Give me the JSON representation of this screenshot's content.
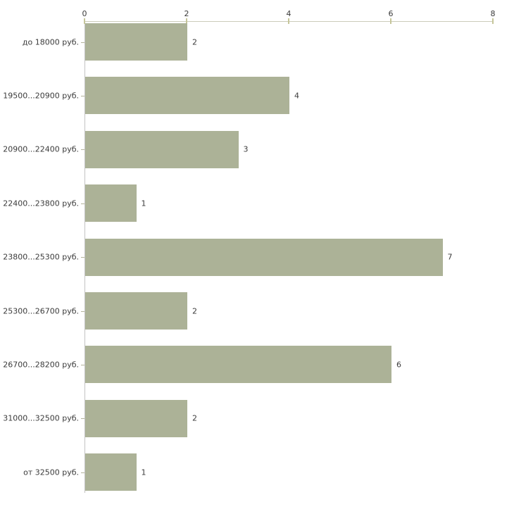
{
  "chart_data": {
    "type": "bar",
    "orientation": "horizontal",
    "title": "",
    "xlabel": "",
    "ylabel": "",
    "categories": [
      "до 18000 руб.",
      "19500...20900 руб.",
      "20900...22400 руб.",
      "22400...23800 руб.",
      "23800...25300 руб.",
      "25300...26700 руб.",
      "26700...28200 руб.",
      "31000...32500 руб.",
      "от 32500 руб."
    ],
    "values": [
      2,
      4,
      3,
      1,
      7,
      2,
      6,
      2,
      1
    ],
    "value_labels": [
      "2",
      "4",
      "3",
      "1",
      "7",
      "2",
      "6",
      "2",
      "1"
    ],
    "xlim": [
      0,
      8
    ],
    "xticks": [
      0,
      2,
      4,
      6,
      8
    ],
    "xtick_labels": [
      "0",
      "2",
      "4",
      "6",
      "8"
    ],
    "axis_position": "top",
    "grid": false,
    "legend": false,
    "colors": {
      "bar": "#acb297",
      "top_axis_line": "#ccccba",
      "left_axis_line": "#c3c3c3",
      "x_tick": "#c6c69a",
      "category_tick": "#b4b49c",
      "text": "#3b3b3b",
      "background": "#ffffff"
    }
  }
}
